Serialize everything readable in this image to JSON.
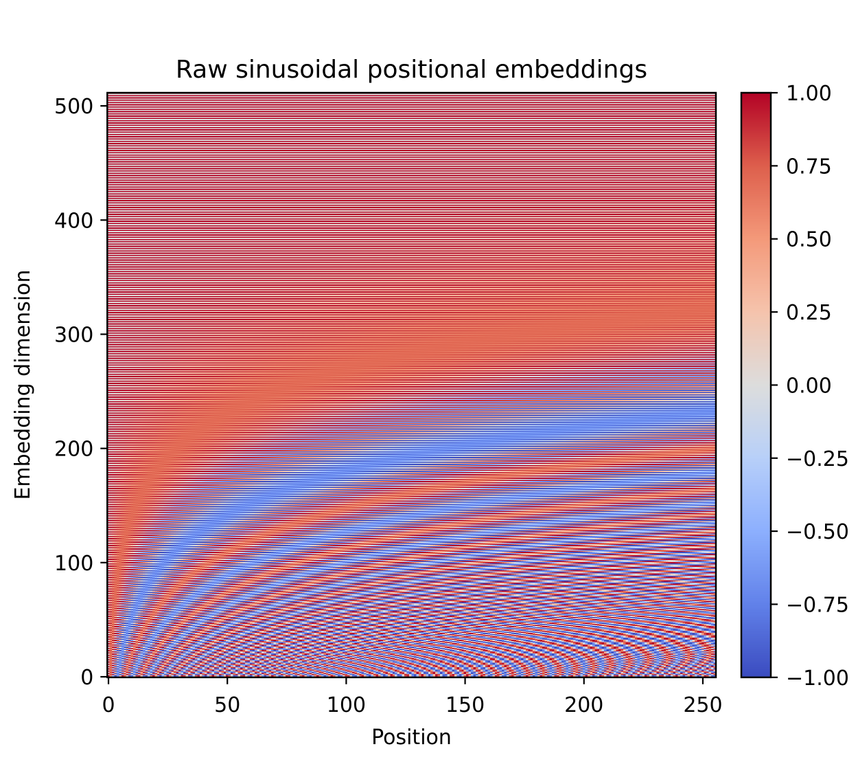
{
  "chart_data": {
    "type": "heatmap",
    "title": "Raw sinusoidal positional embeddings",
    "xlabel": "Position",
    "ylabel": "Embedding dimension",
    "formula": {
      "even_dims": "sin",
      "odd_dims": "cos",
      "base": 10000,
      "d_model": 512,
      "num_positions": 256
    },
    "x_range": [
      -0.5,
      255.5
    ],
    "y_range": [
      -0.5,
      511.5
    ],
    "x_ticks": [
      0,
      50,
      100,
      150,
      200,
      250
    ],
    "x_tick_labels": [
      "0",
      "50",
      "100",
      "150",
      "200",
      "250"
    ],
    "y_ticks": [
      0,
      100,
      200,
      300,
      400,
      500
    ],
    "y_tick_labels": [
      "0",
      "100",
      "200",
      "300",
      "400",
      "500"
    ],
    "colormap": "coolwarm",
    "color_range": [
      -1.0,
      1.0
    ],
    "colorbar_ticks": [
      -1.0,
      -0.75,
      -0.5,
      -0.25,
      0.0,
      0.25,
      0.5,
      0.75,
      1.0
    ],
    "colorbar_tick_labels": [
      "−1.00",
      "−0.75",
      "−0.50",
      "−0.25",
      "0.00",
      "0.25",
      "0.50",
      "0.75",
      "1.00"
    ],
    "grid": false,
    "origin": "lower"
  },
  "colors": {
    "cold": "#3b4cc0",
    "neutral": "#dddddd",
    "hot": "#b40426"
  }
}
